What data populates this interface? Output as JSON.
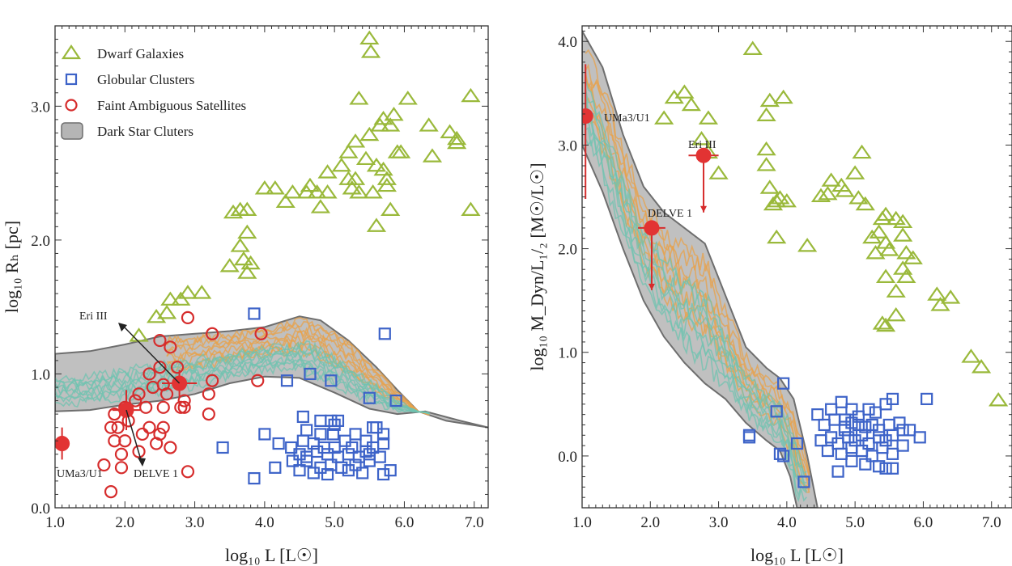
{
  "chart_data": [
    {
      "type": "scatter",
      "panel": "left",
      "xlabel": "log₁₀ L [L☉]",
      "ylabel": "log₁₀ Rₕ [pc]",
      "xlim": [
        1.0,
        7.2
      ],
      "ylim": [
        0.0,
        3.6
      ],
      "x_ticks": [
        "1.0",
        "2.0",
        "3.0",
        "4.0",
        "5.0",
        "6.0",
        "7.0"
      ],
      "y_ticks": [
        "0.0",
        "1.0",
        "2.0",
        "3.0"
      ],
      "grid": false,
      "legend": {
        "placement": "top-left",
        "entries": [
          "Dwarf Galaxies",
          "Globular Clusters",
          "Faint Ambiguous Satellites",
          "Dark Star Cluters"
        ]
      },
      "colors": {
        "dwarf": "#9ab93b",
        "globular": "#3d63c8",
        "faint": "#d62c2c",
        "band": "#b5b5b5",
        "orange": "#e8a24a",
        "teal": "#6fc3b0"
      },
      "series": [
        {
          "name": "Dwarf Galaxies",
          "marker": "triangle",
          "x": [
            5.5,
            5.52,
            5.35,
            6.05,
            6.95,
            5.3,
            5.5,
            5.65,
            5.8,
            5.85,
            5.7,
            6.35,
            6.65,
            6.75,
            5.9,
            5.45,
            5.3,
            5.2,
            5.1,
            4.9,
            4.65,
            4.75,
            4.6,
            4.4,
            4.15,
            4.3,
            4.0,
            5.2,
            5.25,
            5.6,
            5.7,
            5.75,
            5.35,
            5.55,
            5.75,
            5.95,
            6.4,
            6.75,
            6.95,
            4.9,
            5.6,
            5.8,
            4.8,
            3.55,
            3.75,
            3.65,
            3.7,
            3.5,
            3.8,
            3.75,
            3.65,
            3.75,
            2.8,
            2.65,
            2.6,
            2.45,
            2.9,
            3.1,
            2.2
          ],
          "y": [
            3.5,
            3.4,
            3.05,
            3.05,
            3.07,
            2.73,
            2.78,
            2.85,
            2.85,
            2.93,
            2.9,
            2.85,
            2.8,
            2.75,
            2.65,
            2.6,
            2.45,
            2.65,
            2.55,
            2.5,
            2.4,
            2.35,
            2.35,
            2.35,
            2.38,
            2.28,
            2.38,
            2.45,
            2.38,
            2.55,
            2.52,
            2.45,
            2.35,
            2.35,
            2.4,
            2.65,
            2.62,
            2.72,
            2.22,
            2.35,
            2.1,
            2.22,
            2.24,
            2.2,
            2.05,
            1.95,
            1.85,
            1.8,
            1.82,
            1.75,
            2.22,
            2.22,
            1.55,
            1.55,
            1.45,
            1.42,
            1.6,
            1.6,
            1.28
          ]
        },
        {
          "name": "Globular Clusters",
          "marker": "square",
          "x": [
            3.85,
            5.72,
            4.65,
            4.95,
            4.32,
            5.5,
            5.88,
            4.55,
            4.8,
            4.95,
            4.98,
            5.05,
            5.55,
            5.6,
            5.7,
            3.4,
            4.2,
            4.38,
            4.55,
            4.7,
            4.85,
            5.0,
            5.15,
            5.3,
            5.45,
            5.55,
            5.7,
            4.5,
            4.6,
            4.75,
            4.9,
            5.05,
            5.2,
            5.35,
            5.5,
            5.65,
            4.15,
            4.4,
            4.6,
            4.8,
            4.95,
            5.1,
            5.3,
            5.5,
            5.8,
            3.85,
            4.5,
            4.7,
            4.9,
            5.2,
            5.4,
            5.7,
            4.8,
            4.0,
            4.6,
            5.0,
            5.25,
            5.45
          ],
          "y": [
            1.45,
            1.3,
            1.0,
            0.95,
            0.95,
            0.82,
            0.8,
            0.68,
            0.65,
            0.65,
            0.55,
            0.65,
            0.6,
            0.6,
            0.55,
            0.45,
            0.48,
            0.45,
            0.5,
            0.48,
            0.45,
            0.45,
            0.5,
            0.55,
            0.5,
            0.45,
            0.48,
            0.4,
            0.38,
            0.42,
            0.4,
            0.38,
            0.4,
            0.38,
            0.4,
            0.38,
            0.3,
            0.35,
            0.35,
            0.3,
            0.32,
            0.3,
            0.32,
            0.35,
            0.28,
            0.22,
            0.28,
            0.26,
            0.25,
            0.28,
            0.26,
            0.25,
            0.55,
            0.55,
            0.58,
            0.62,
            0.45,
            0.42
          ]
        },
        {
          "name": "Faint Ambiguous Satellites",
          "marker": "circle",
          "x": [
            2.9,
            3.25,
            2.5,
            2.65,
            3.95,
            2.5,
            2.75,
            3.25,
            2.35,
            2.55,
            2.85,
            3.9,
            2.2,
            2.4,
            2.6,
            2.8,
            3.2,
            1.85,
            2.0,
            2.15,
            2.3,
            2.55,
            2.85,
            3.2,
            1.8,
            1.9,
            2.05,
            2.35,
            2.55,
            1.85,
            2.0,
            2.25,
            2.5,
            1.95,
            2.2,
            2.45,
            2.65,
            2.9,
            1.7,
            1.95,
            1.8
          ],
          "y": [
            1.42,
            1.3,
            1.25,
            1.2,
            1.3,
            1.05,
            1.05,
            0.95,
            1.0,
            0.92,
            0.8,
            0.95,
            0.85,
            0.9,
            0.85,
            0.75,
            0.85,
            0.7,
            0.75,
            0.8,
            0.75,
            0.75,
            0.75,
            0.7,
            0.6,
            0.6,
            0.65,
            0.6,
            0.6,
            0.5,
            0.5,
            0.55,
            0.55,
            0.4,
            0.42,
            0.48,
            0.45,
            0.27,
            0.32,
            0.3,
            0.12
          ]
        },
        {
          "name": "Eri III",
          "marker": "filled-circle",
          "x": [
            2.78
          ],
          "y": [
            0.93
          ],
          "xerr": [
            0.25
          ],
          "yerr": [
            0.1
          ]
        },
        {
          "name": "DELVE 1",
          "marker": "filled-circle",
          "x": [
            2.02
          ],
          "y": [
            0.73
          ],
          "xerr": [
            0.2
          ],
          "yerr": [
            0.15
          ]
        },
        {
          "name": "UMa3/U1",
          "marker": "filled-circle",
          "x": [
            1.1
          ],
          "y": [
            0.48
          ],
          "xerr": [
            0.0
          ],
          "yerr": [
            0.12
          ]
        }
      ],
      "band": {
        "name": "Dark Star Cluters",
        "upper": [
          [
            1.0,
            1.15
          ],
          [
            1.5,
            1.17
          ],
          [
            2.0,
            1.22
          ],
          [
            2.5,
            1.28
          ],
          [
            3.0,
            1.3
          ],
          [
            3.5,
            1.32
          ],
          [
            4.0,
            1.35
          ],
          [
            4.5,
            1.43
          ],
          [
            4.8,
            1.4
          ],
          [
            5.2,
            1.25
          ],
          [
            5.6,
            1.05
          ],
          [
            5.9,
            0.88
          ],
          [
            6.2,
            0.72
          ],
          [
            6.6,
            0.65
          ],
          [
            7.2,
            0.6
          ]
        ],
        "lower": [
          [
            1.0,
            0.72
          ],
          [
            1.5,
            0.73
          ],
          [
            2.0,
            0.77
          ],
          [
            2.5,
            0.8
          ],
          [
            3.0,
            0.85
          ],
          [
            3.5,
            0.93
          ],
          [
            4.0,
            0.98
          ],
          [
            4.5,
            0.97
          ],
          [
            5.0,
            0.86
          ],
          [
            5.5,
            0.74
          ],
          [
            5.9,
            0.7
          ],
          [
            6.3,
            0.72
          ],
          [
            6.8,
            0.65
          ],
          [
            7.2,
            0.6
          ]
        ]
      },
      "annotations": [
        "Eri III",
        "UMa3/U1",
        "DELVE 1"
      ]
    },
    {
      "type": "scatter",
      "panel": "right",
      "xlabel": "log₁₀ L [L☉]",
      "ylabel": "log₁₀ M_Dyn/L₁/₂ [M☉/L☉]",
      "xlim": [
        1.0,
        7.3
      ],
      "ylim": [
        -0.5,
        4.15
      ],
      "x_ticks": [
        "1.0",
        "2.0",
        "3.0",
        "4.0",
        "5.0",
        "6.0",
        "7.0"
      ],
      "y_ticks": [
        "0.0",
        "1.0",
        "2.0",
        "3.0",
        "4.0"
      ],
      "grid": false,
      "series": [
        {
          "name": "Dwarf Galaxies",
          "marker": "triangle",
          "x": [
            3.5,
            2.35,
            2.5,
            2.2,
            2.6,
            2.85,
            3.75,
            3.7,
            3.95,
            3.7,
            2.75,
            2.85,
            3.0,
            3.7,
            3.75,
            3.85,
            3.9,
            3.8,
            4.0,
            3.85,
            5.1,
            4.65,
            4.8,
            4.85,
            4.5,
            4.6,
            5.0,
            5.05,
            5.15,
            5.4,
            5.45,
            5.35,
            5.45,
            5.6,
            5.7,
            5.7,
            5.5,
            5.25,
            5.3,
            5.75,
            5.85,
            5.75,
            5.7,
            5.6,
            5.45,
            5.6,
            4.3,
            5.4,
            5.45,
            6.2,
            6.25,
            6.4,
            6.7,
            6.85,
            7.1
          ],
          "y": [
            3.92,
            3.45,
            3.5,
            3.25,
            3.38,
            3.25,
            3.42,
            3.28,
            3.45,
            2.95,
            3.05,
            2.92,
            2.72,
            2.8,
            2.58,
            2.45,
            2.48,
            2.42,
            2.45,
            2.1,
            2.92,
            2.65,
            2.6,
            2.55,
            2.5,
            2.52,
            2.72,
            2.48,
            2.42,
            2.28,
            2.32,
            2.15,
            2.05,
            2.28,
            2.25,
            2.12,
            1.98,
            2.1,
            1.95,
            1.95,
            1.9,
            1.72,
            1.8,
            1.58,
            1.72,
            1.35,
            2.02,
            1.27,
            1.25,
            1.55,
            1.45,
            1.52,
            0.95,
            0.85,
            0.53
          ]
        },
        {
          "name": "Globular Clusters",
          "marker": "square",
          "x": [
            3.95,
            3.45,
            3.85,
            3.9,
            4.15,
            4.25,
            4.45,
            4.65,
            4.8,
            4.85,
            4.95,
            5.05,
            5.2,
            5.3,
            5.45,
            5.55,
            6.05,
            4.55,
            4.7,
            4.85,
            4.95,
            5.05,
            5.15,
            5.25,
            5.35,
            5.5,
            5.65,
            5.8,
            5.95,
            4.5,
            4.65,
            4.75,
            4.9,
            5.0,
            5.1,
            5.2,
            5.35,
            5.45,
            5.55,
            5.7,
            4.6,
            4.8,
            4.95,
            5.1,
            5.25,
            5.4,
            5.55,
            5.7,
            4.75,
            4.95,
            5.15,
            5.35,
            5.55,
            4.85,
            5.45,
            3.45,
            3.95
          ],
          "y": [
            0.7,
            0.2,
            0.43,
            0.02,
            0.12,
            -0.25,
            0.4,
            0.45,
            0.52,
            0.35,
            0.45,
            0.38,
            0.45,
            0.42,
            0.5,
            0.55,
            0.55,
            0.3,
            0.35,
            0.28,
            0.32,
            0.3,
            0.28,
            0.3,
            0.25,
            0.3,
            0.32,
            0.25,
            0.18,
            0.15,
            0.18,
            0.12,
            0.18,
            0.15,
            0.2,
            0.12,
            0.18,
            0.15,
            0.2,
            0.25,
            0.05,
            0.02,
            0.08,
            0.05,
            0.0,
            0.08,
            0.02,
            0.1,
            -0.15,
            -0.05,
            -0.08,
            -0.1,
            -0.12,
            0.25,
            -0.12,
            0.18,
            0.0
          ]
        },
        {
          "name": "UMa3/U1",
          "marker": "filled-circle",
          "x": [
            1.05
          ],
          "y": [
            3.28
          ],
          "xerr": [
            0.0
          ],
          "yerr_up": [
            0.5
          ],
          "yerr_down": [
            0.8
          ]
        },
        {
          "name": "Eri III",
          "marker": "filled-circle",
          "x": [
            2.78
          ],
          "y": [
            2.9
          ],
          "xerr": [
            0.22
          ],
          "yerr_up": [
            0.0
          ],
          "yerr_down": [
            0.55
          ],
          "upper_limit": true
        },
        {
          "name": "DELVE 1",
          "marker": "filled-circle",
          "x": [
            2.02
          ],
          "y": [
            2.2
          ],
          "xerr": [
            0.2
          ],
          "yerr_up": [
            0.0
          ],
          "yerr_down": [
            0.6
          ],
          "upper_limit": true
        }
      ],
      "band": {
        "name": "Dark Star Cluters",
        "upper": [
          [
            1.0,
            4.1
          ],
          [
            1.3,
            3.75
          ],
          [
            1.6,
            3.1
          ],
          [
            1.9,
            2.6
          ],
          [
            2.2,
            2.35
          ],
          [
            2.5,
            2.2
          ],
          [
            2.8,
            2.05
          ],
          [
            3.1,
            1.55
          ],
          [
            3.4,
            1.05
          ],
          [
            3.7,
            0.85
          ],
          [
            3.9,
            0.75
          ],
          [
            4.1,
            0.55
          ],
          [
            4.3,
            0.0
          ],
          [
            4.45,
            -0.5
          ]
        ],
        "lower": [
          [
            1.0,
            3.0
          ],
          [
            1.3,
            2.55
          ],
          [
            1.6,
            2.0
          ],
          [
            1.9,
            1.5
          ],
          [
            2.2,
            1.15
          ],
          [
            2.5,
            0.9
          ],
          [
            2.8,
            0.7
          ],
          [
            3.1,
            0.55
          ],
          [
            3.4,
            0.32
          ],
          [
            3.7,
            0.15
          ],
          [
            3.9,
            0.05
          ],
          [
            4.05,
            -0.2
          ],
          [
            4.15,
            -0.5
          ]
        ]
      },
      "annotations": [
        "UMa3/U1",
        "Eri III",
        "DELVE 1"
      ]
    }
  ]
}
